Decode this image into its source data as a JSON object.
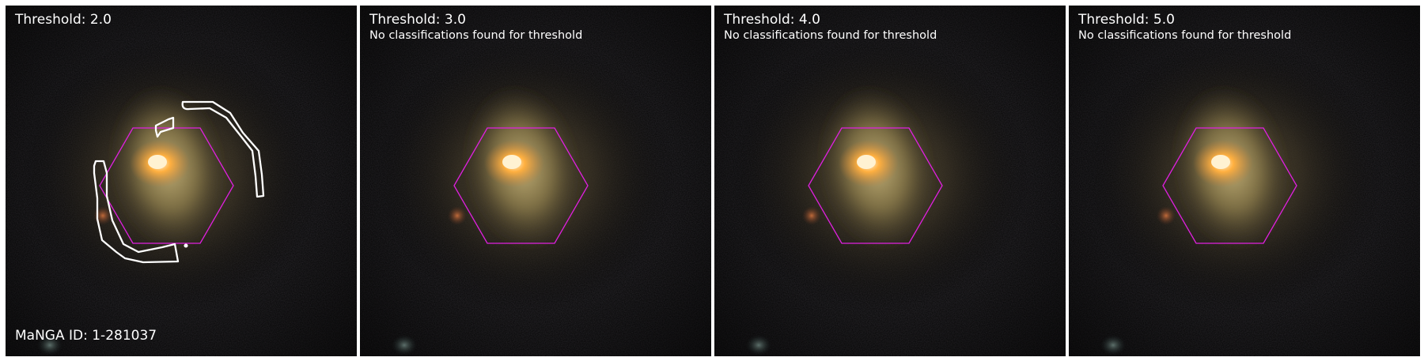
{
  "panels": [
    {
      "title": "Threshold: 2.0",
      "note": "",
      "id_label": "MaNGA ID: 1-281037",
      "has_contours": true
    },
    {
      "title": "Threshold: 3.0",
      "note": "No classifications found for threshold",
      "id_label": "",
      "has_contours": false
    },
    {
      "title": "Threshold: 4.0",
      "note": "No classifications found for threshold",
      "id_label": "",
      "has_contours": false
    },
    {
      "title": "Threshold: 5.0",
      "note": "No classifications found for threshold",
      "id_label": "",
      "has_contours": false
    }
  ],
  "colors": {
    "background": "#050505",
    "hexagon": "#e020e0",
    "contour": "#ffffff",
    "text": "#ffffff",
    "core": "#ffb040",
    "disk": "#8a7a4a"
  }
}
